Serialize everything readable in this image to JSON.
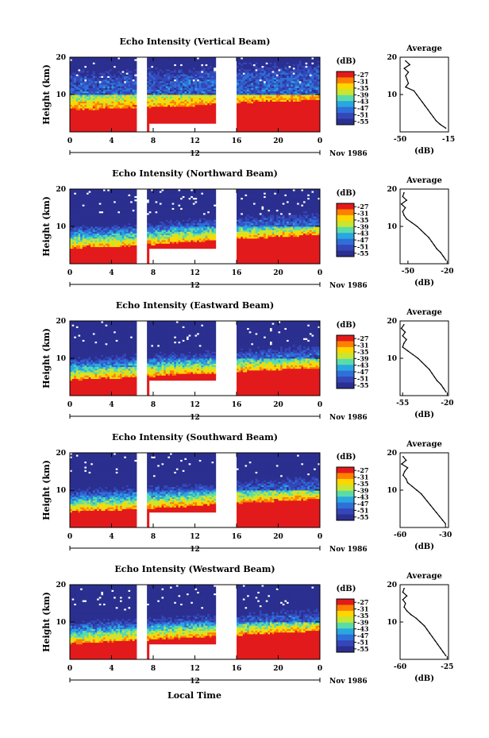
{
  "figure": {
    "shared_xlabel": "Local Time",
    "date_label": "Nov 1986",
    "date_tick": "12",
    "colorbar_title": "(dB)",
    "colorbar_ticks": [
      "-27",
      "-31",
      "-35",
      "-39",
      "-43",
      "-47",
      "-51",
      "-55"
    ],
    "colormap": [
      "#e31a1c",
      "#ff7f00",
      "#ffd700",
      "#c8e632",
      "#5adcaa",
      "#2aa6e0",
      "#2e6fd8",
      "#3546b8",
      "#2b2f8f"
    ],
    "missing_data_color": "#ffffff"
  },
  "chart_data": [
    {
      "type": "heatmap",
      "title": "Echo Intensity (Vertical Beam)",
      "ylabel": "Height (km)",
      "xlim": [
        0,
        24
      ],
      "ylim": [
        0,
        20
      ],
      "xticks": [
        "0",
        "4",
        "8",
        "12",
        "16",
        "20",
        "0"
      ],
      "yticks": [
        "20",
        "10"
      ],
      "data_gaps_hours": [
        [
          6.5,
          7.5
        ],
        [
          14,
          16
        ]
      ],
      "partial_gap": {
        "x": [
          7.5,
          14
        ],
        "below_km": 2.5
      },
      "boundary_km": [
        6.2,
        6.0,
        6.3,
        6.5,
        6.6,
        6.8,
        7.0,
        7.4,
        7.8,
        8.0,
        8.2,
        8.4,
        8.5
      ],
      "noise_level": 0.5,
      "floor_db": -50,
      "average_profile": {
        "title": "Average",
        "xlabel": "(dB)",
        "xticks": [
          "-50",
          "-15"
        ],
        "xlim": [
          -50,
          -15
        ],
        "yticks": [
          "20",
          "10"
        ],
        "ylim": [
          0,
          20
        ],
        "heights_km": [
          19,
          18,
          17,
          16,
          15,
          14,
          13,
          12,
          11,
          10,
          9,
          8,
          7,
          6,
          5,
          4,
          3,
          2,
          1
        ],
        "values_db": [
          -46,
          -43,
          -47,
          -44,
          -46,
          -45,
          -44,
          -46,
          -40,
          -38,
          -36,
          -34,
          -32,
          -30,
          -28,
          -26,
          -24,
          -21,
          -17
        ]
      }
    },
    {
      "type": "heatmap",
      "title": "Echo Intensity (Northward Beam)",
      "ylabel": "Height (km)",
      "xlim": [
        0,
        24
      ],
      "ylim": [
        0,
        20
      ],
      "xticks": [
        "0",
        "4",
        "8",
        "12",
        "16",
        "20",
        "0"
      ],
      "yticks": [
        "20",
        "10"
      ],
      "data_gaps_hours": [
        [
          6.5,
          7.5
        ],
        [
          14,
          16
        ]
      ],
      "partial_gap": {
        "x": [
          7.5,
          14
        ],
        "below_km": 4.0
      },
      "boundary_km": [
        4.2,
        4.4,
        4.6,
        4.8,
        5.2,
        5.6,
        6.0,
        6.3,
        6.6,
        6.9,
        7.2,
        7.5,
        7.6
      ],
      "noise_level": 0.85,
      "floor_db": -55,
      "average_profile": {
        "title": "Average",
        "xlabel": "(dB)",
        "xticks": [
          "-50",
          "-20"
        ],
        "xlim": [
          -56,
          -19
        ],
        "yticks": [
          "20",
          "10"
        ],
        "ylim": [
          0,
          20
        ],
        "heights_km": [
          19,
          18,
          17,
          16,
          15,
          14,
          13,
          12,
          11,
          10,
          9,
          8,
          7,
          6,
          5,
          4,
          3,
          2,
          1
        ],
        "values_db": [
          -53,
          -54,
          -51,
          -55,
          -52,
          -54,
          -53,
          -51,
          -47,
          -43,
          -40,
          -37,
          -34,
          -32,
          -30,
          -28,
          -25,
          -23,
          -21
        ]
      }
    },
    {
      "type": "heatmap",
      "title": "Echo Intensity (Eastward Beam)",
      "ylabel": "Height (km)",
      "xlim": [
        0,
        24
      ],
      "ylim": [
        0,
        20
      ],
      "xticks": [
        "0",
        "4",
        "8",
        "12",
        "16",
        "20",
        "0"
      ],
      "yticks": [
        "20",
        "10"
      ],
      "data_gaps_hours": [
        [
          6.5,
          7.5
        ],
        [
          14,
          16
        ]
      ],
      "partial_gap": {
        "x": [
          7.5,
          14
        ],
        "below_km": 4.0
      },
      "boundary_km": [
        4.2,
        4.4,
        4.6,
        4.9,
        5.2,
        5.5,
        5.8,
        6.1,
        6.4,
        6.7,
        7.0,
        7.3,
        7.5
      ],
      "noise_level": 0.85,
      "floor_db": -55,
      "average_profile": {
        "title": "Average",
        "xlabel": "(dB)",
        "xticks": [
          "-55",
          "-20"
        ],
        "xlim": [
          -57,
          -19
        ],
        "yticks": [
          "20",
          "10"
        ],
        "ylim": [
          0,
          20
        ],
        "heights_km": [
          19,
          18,
          17,
          16,
          15,
          14,
          13,
          12,
          11,
          10,
          9,
          8,
          7,
          6,
          5,
          4,
          3,
          2,
          1
        ],
        "values_db": [
          -54,
          -56,
          -53,
          -55,
          -52,
          -54,
          -55,
          -51,
          -47,
          -43,
          -40,
          -37,
          -34,
          -32,
          -30,
          -28,
          -25,
          -23,
          -21
        ]
      }
    },
    {
      "type": "heatmap",
      "title": "Echo Intensity (Southward Beam)",
      "ylabel": "Height (km)",
      "xlim": [
        0,
        24
      ],
      "ylim": [
        0,
        20
      ],
      "xticks": [
        "0",
        "4",
        "8",
        "12",
        "16",
        "20",
        "0"
      ],
      "yticks": [
        "20",
        "10"
      ],
      "data_gaps_hours": [
        [
          6.5,
          7.5
        ],
        [
          14,
          16
        ]
      ],
      "partial_gap": {
        "x": [
          7.5,
          14
        ],
        "below_km": 4.0
      },
      "boundary_km": [
        4.2,
        4.4,
        4.6,
        4.9,
        5.2,
        5.5,
        5.8,
        6.2,
        6.5,
        6.8,
        7.1,
        7.4,
        7.6
      ],
      "noise_level": 0.85,
      "floor_db": -55,
      "average_profile": {
        "title": "Average",
        "xlabel": "(dB)",
        "xticks": [
          "-60",
          "-30"
        ],
        "xlim": [
          -60,
          -28
        ],
        "yticks": [
          "20",
          "10"
        ],
        "ylim": [
          0,
          20
        ],
        "heights_km": [
          19,
          18,
          17,
          16,
          15,
          14,
          13,
          12,
          11,
          10,
          9,
          8,
          7,
          6,
          5,
          4,
          3,
          2,
          1
        ],
        "values_db": [
          -58,
          -56,
          -59,
          -55,
          -57,
          -58,
          -56,
          -55,
          -52,
          -49,
          -46,
          -44,
          -42,
          -40,
          -38,
          -36,
          -34,
          -32,
          -30
        ]
      }
    },
    {
      "type": "heatmap",
      "title": "Echo Intensity (Westward Beam)",
      "ylabel": "Height (km)",
      "xlim": [
        0,
        24
      ],
      "ylim": [
        0,
        20
      ],
      "xticks": [
        "0",
        "4",
        "8",
        "12",
        "16",
        "20",
        "0"
      ],
      "yticks": [
        "20",
        "10"
      ],
      "data_gaps_hours": [
        [
          6.5,
          7.5
        ],
        [
          14,
          16
        ]
      ],
      "partial_gap": {
        "x": [
          7.5,
          14
        ],
        "below_km": 4.0
      },
      "boundary_km": [
        4.2,
        4.4,
        4.7,
        5.0,
        5.3,
        5.6,
        5.9,
        6.2,
        6.5,
        6.8,
        7.1,
        7.4,
        7.6
      ],
      "noise_level": 0.85,
      "floor_db": -55,
      "average_profile": {
        "title": "Average",
        "xlabel": "(dB)",
        "xticks": [
          "-60",
          "-25"
        ],
        "xlim": [
          -60,
          -24
        ],
        "yticks": [
          "20",
          "10"
        ],
        "ylim": [
          0,
          20
        ],
        "heights_km": [
          19,
          18,
          17,
          16,
          15,
          14,
          13,
          12,
          11,
          10,
          9,
          8,
          7,
          6,
          5,
          4,
          3,
          2,
          1
        ],
        "values_db": [
          -57,
          -58,
          -55,
          -58,
          -56,
          -57,
          -55,
          -52,
          -48,
          -45,
          -42,
          -40,
          -38,
          -36,
          -34,
          -32,
          -30,
          -28,
          -26
        ]
      }
    }
  ]
}
